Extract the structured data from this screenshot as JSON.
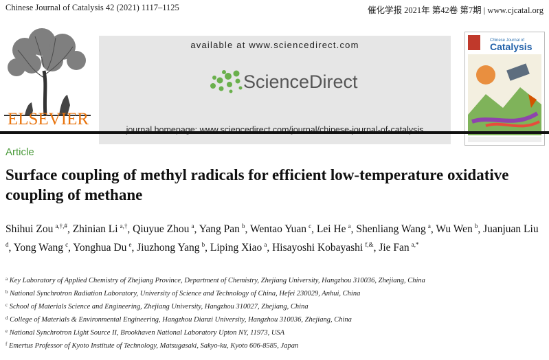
{
  "header": {
    "journal_citation": "Chinese Journal of Catalysis 42 (2021) 1117–1125",
    "chinese_citation": "催化学报 2021年 第42卷 第7期 | www.cjcatal.org"
  },
  "banner": {
    "publisher": "ELSEVIER",
    "available_at": "available at www.sciencedirect.com",
    "sciencedirect": "ScienceDirect",
    "homepage": "journal homepage: www.sciencedirect.com/journal/chinese-journal-of-catalysis",
    "cover_title": "Catalysis",
    "cover_subtitle": "Chinese Journal of"
  },
  "article": {
    "type": "Article",
    "title": "Surface coupling of methyl radicals for efficient low-temperature oxidative coupling of methane",
    "authors": [
      {
        "name": "Shihui Zou",
        "sup": "a,†,#",
        "sep": ", "
      },
      {
        "name": "Zhinian Li",
        "sup": "a,†",
        "sep": ", "
      },
      {
        "name": "Qiuyue Zhou",
        "sup": "a",
        "sep": ", "
      },
      {
        "name": "Yang Pan",
        "sup": "b",
        "sep": ", "
      },
      {
        "name": "Wentao Yuan",
        "sup": "c",
        "sep": ", "
      },
      {
        "name": "Lei He",
        "sup": "a",
        "sep": ", "
      },
      {
        "name": "Shenliang Wang",
        "sup": "a",
        "sep": ", "
      },
      {
        "name": "Wu Wen",
        "sup": "b",
        "sep": ", "
      },
      {
        "name": "Juanjuan Liu",
        "sup": "d",
        "sep": ", "
      },
      {
        "name": "Yong Wang",
        "sup": "c",
        "sep": ", "
      },
      {
        "name": "Yonghua Du",
        "sup": "e",
        "sep": ", "
      },
      {
        "name": "Jiuzhong Yang",
        "sup": "b",
        "sep": ", "
      },
      {
        "name": "Liping Xiao",
        "sup": "a",
        "sep": ", "
      },
      {
        "name": "Hisayoshi Kobayashi",
        "sup": "f,&",
        "sep": ", "
      },
      {
        "name": "Jie Fan",
        "sup": "a,*",
        "sep": ""
      }
    ],
    "affiliations": [
      {
        "label": "a",
        "text": "Key Laboratory of Applied Chemistry of Zhejiang Province, Department of Chemistry, Zhejiang University, Hangzhou 310036, Zhejiang, China"
      },
      {
        "label": "b",
        "text": "National Synchrotron Radiation Laboratory, University of Science and Technology of China, Hefei 230029, Anhui, China"
      },
      {
        "label": "c",
        "text": "School of Materials Science and Engineering, Zhejiang University, Hangzhou 310027, Zhejiang, China"
      },
      {
        "label": "d",
        "text": "College of Materials & Environmental Engineering, Hangzhou Dianzi University, Hangzhou 310036, Zhejiang, China"
      },
      {
        "label": "e",
        "text": "National Synchrotron Light Source II, Brookhaven National Laboratory Upton NY, 11973, USA"
      },
      {
        "label": "f",
        "text": "Emertus Professor of Kyoto Institute of Technology, Matsugasaki, Sakyo-ku, Kyoto 606-8585, Japan"
      }
    ]
  },
  "colors": {
    "elsevier_orange": "#e8730c",
    "article_green": "#4a9a3a",
    "sd_green": "#6ab04c"
  }
}
